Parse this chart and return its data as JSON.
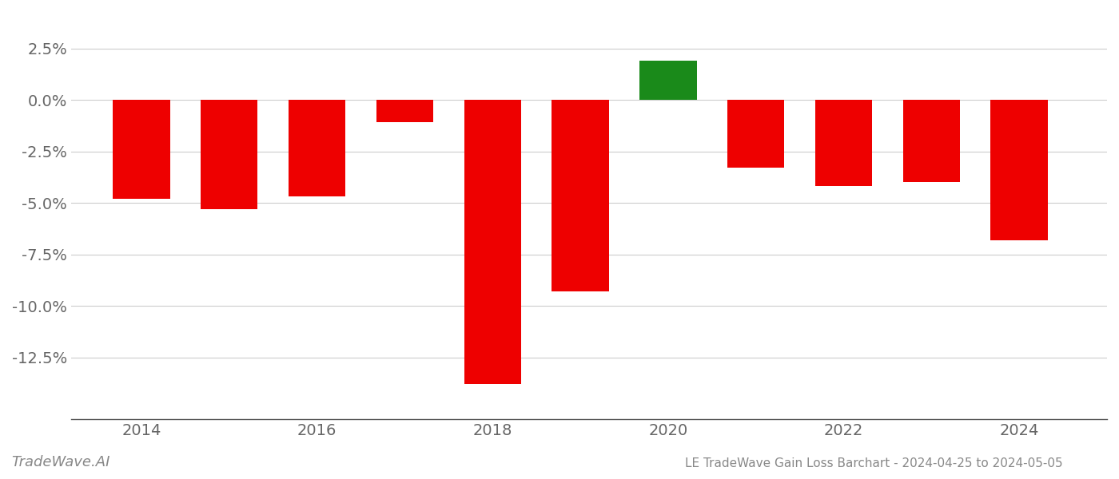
{
  "years": [
    2014,
    2015,
    2016,
    2017,
    2018,
    2019,
    2020,
    2021,
    2022,
    2023,
    2024
  ],
  "values": [
    -4.8,
    -5.3,
    -4.7,
    -1.1,
    -13.8,
    -9.3,
    1.9,
    -3.3,
    -4.2,
    -4.0,
    -6.8
  ],
  "colors": [
    "#ee0000",
    "#ee0000",
    "#ee0000",
    "#ee0000",
    "#ee0000",
    "#ee0000",
    "#1a8a1a",
    "#ee0000",
    "#ee0000",
    "#ee0000",
    "#ee0000"
  ],
  "ylim": [
    -15.5,
    3.8
  ],
  "yticks": [
    2.5,
    0.0,
    -2.5,
    -5.0,
    -7.5,
    -10.0,
    -12.5
  ],
  "xlim": [
    2013.2,
    2025.0
  ],
  "xticks": [
    2014,
    2016,
    2018,
    2020,
    2022,
    2024
  ],
  "title": "LE TradeWave Gain Loss Barchart - 2024-04-25 to 2024-05-05",
  "watermark": "TradeWave.AI",
  "bar_width": 0.65,
  "fig_bg": "#ffffff",
  "ax_bg": "#ffffff",
  "grid_color": "#cccccc",
  "spine_color": "#555555",
  "tick_color": "#666666",
  "title_color": "#888888",
  "watermark_color": "#888888",
  "tick_fontsize": 14,
  "title_fontsize": 11,
  "watermark_fontsize": 13
}
